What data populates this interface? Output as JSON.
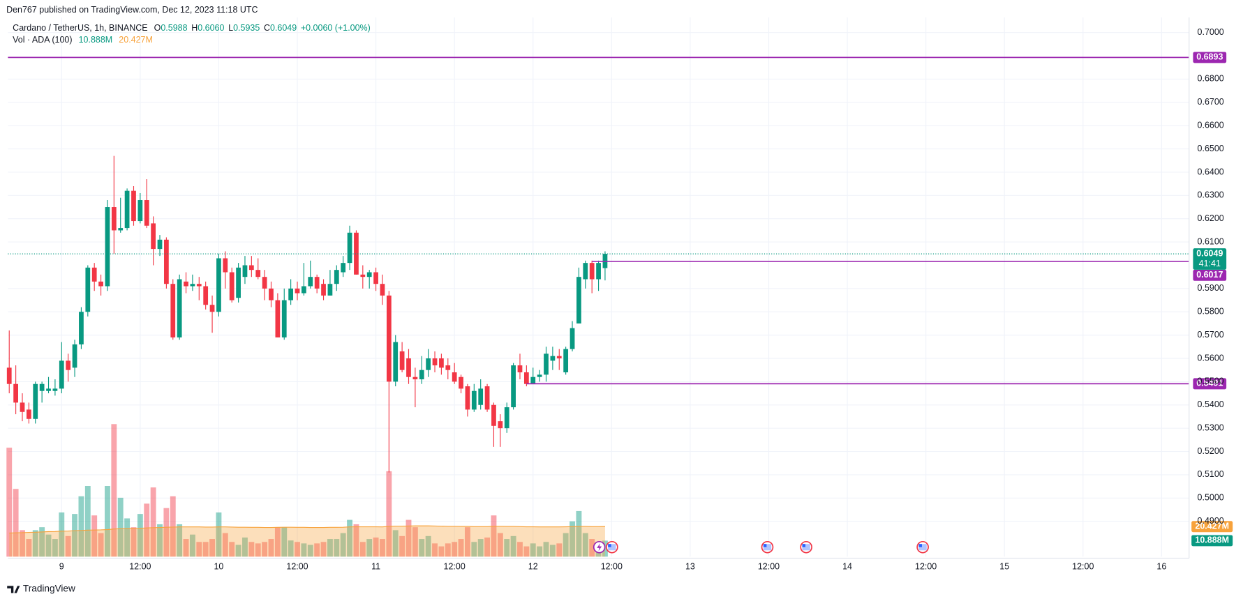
{
  "header": {
    "text": "Den767 published on TradingView.com, Dec 12, 2023 11:18 UTC"
  },
  "footer": {
    "brand": "TradingView"
  },
  "chart_data": {
    "type": "candlestick",
    "symbol": "Cardano / TetherUS, 1h, BINANCE",
    "ohlc_legend": [
      {
        "key": "O",
        "value": "0.5988"
      },
      {
        "key": "H",
        "value": "0.6060"
      },
      {
        "key": "L",
        "value": "0.5935"
      },
      {
        "key": "C",
        "value": "0.6049"
      }
    ],
    "change": "+0.0060 (+1.00%)",
    "volume_legend": {
      "name": "Vol · ADA (100)",
      "values": [
        "10.888M",
        "20.427M"
      ]
    },
    "up_color": "#089981",
    "down_color": "#f23645",
    "volume_ma_color": "#f7a23b",
    "x": [
      -8,
      -7,
      -6,
      -5,
      -4,
      -3,
      -2,
      -1,
      0,
      1,
      2,
      3,
      4,
      5,
      6,
      7,
      8,
      9,
      10,
      11,
      12,
      13,
      14,
      15,
      16,
      17,
      18,
      19,
      20,
      21,
      22,
      23,
      24,
      25,
      26,
      27,
      28,
      29,
      30,
      31,
      32,
      33,
      34,
      35,
      36,
      37,
      38,
      39,
      40,
      41,
      42,
      43,
      44,
      45,
      46,
      47,
      48,
      49,
      50,
      51,
      52,
      53,
      54,
      55,
      56,
      57,
      58,
      59,
      60,
      61,
      62,
      63,
      64,
      65,
      66,
      67,
      68,
      69,
      70,
      71,
      72,
      73,
      74,
      75,
      76,
      77,
      78,
      79,
      80,
      81,
      82,
      83
    ],
    "open": [
      0.556,
      0.549,
      0.541,
      0.538,
      0.534,
      0.546,
      0.546,
      0.546,
      0.547,
      0.559,
      0.556,
      0.566,
      0.58,
      0.599,
      0.593,
      0.591,
      0.625,
      0.615,
      0.616,
      0.632,
      0.619,
      0.628,
      0.618,
      0.607,
      0.611,
      0.592,
      0.569,
      0.593,
      0.591,
      0.592,
      0.591,
      0.583,
      0.58,
      0.603,
      0.597,
      0.586,
      0.595,
      0.6,
      0.598,
      0.595,
      0.59,
      0.585,
      0.569,
      0.585,
      0.59,
      0.588,
      0.591,
      0.595,
      0.592,
      0.587,
      0.592,
      0.597,
      0.601,
      0.614,
      0.596,
      0.595,
      0.597,
      0.592,
      0.587,
      0.55,
      0.563,
      0.56,
      0.552,
      0.551,
      0.555,
      0.56,
      0.56,
      0.557,
      0.554,
      0.552,
      0.548,
      0.538,
      0.54,
      0.548,
      0.54,
      0.533,
      0.53,
      0.539,
      0.557,
      0.554,
      0.549,
      0.552,
      0.553,
      0.559,
      0.561,
      0.554,
      0.564,
      0.575,
      0.594,
      0.601,
      0.594,
      0.5988
    ],
    "high": [
      0.572,
      0.557,
      0.545,
      0.541,
      0.55,
      0.55,
      0.552,
      0.551,
      0.567,
      0.562,
      0.568,
      0.582,
      0.6,
      0.601,
      0.596,
      0.628,
      0.647,
      0.629,
      0.633,
      0.634,
      0.631,
      0.637,
      0.621,
      0.613,
      0.612,
      0.594,
      0.596,
      0.597,
      0.596,
      0.595,
      0.593,
      0.587,
      0.605,
      0.606,
      0.599,
      0.601,
      0.604,
      0.604,
      0.603,
      0.598,
      0.593,
      0.588,
      0.59,
      0.594,
      0.593,
      0.601,
      0.602,
      0.596,
      0.594,
      0.598,
      0.6,
      0.604,
      0.617,
      0.615,
      0.6,
      0.598,
      0.599,
      0.596,
      0.589,
      0.57,
      0.567,
      0.564,
      0.556,
      0.561,
      0.564,
      0.563,
      0.562,
      0.56,
      0.558,
      0.553,
      0.549,
      0.549,
      0.551,
      0.549,
      0.541,
      0.536,
      0.541,
      0.558,
      0.562,
      0.557,
      0.556,
      0.555,
      0.565,
      0.565,
      0.564,
      0.565,
      0.576,
      0.599,
      0.602,
      0.602,
      0.602,
      0.606
    ],
    "low": [
      0.545,
      0.536,
      0.533,
      0.532,
      0.532,
      0.541,
      0.545,
      0.544,
      0.545,
      0.55,
      0.552,
      0.564,
      0.578,
      0.589,
      0.587,
      0.589,
      0.605,
      0.614,
      0.615,
      0.617,
      0.618,
      0.616,
      0.6,
      0.604,
      0.59,
      0.568,
      0.568,
      0.588,
      0.589,
      0.585,
      0.581,
      0.571,
      0.578,
      0.59,
      0.584,
      0.584,
      0.592,
      0.595,
      0.594,
      0.585,
      0.582,
      0.569,
      0.568,
      0.583,
      0.585,
      0.587,
      0.59,
      0.588,
      0.585,
      0.587,
      0.589,
      0.595,
      0.598,
      0.596,
      0.59,
      0.59,
      0.589,
      0.583,
      0.511,
      0.548,
      0.554,
      0.549,
      0.539,
      0.549,
      0.552,
      0.554,
      0.553,
      0.551,
      0.549,
      0.545,
      0.535,
      0.537,
      0.538,
      0.537,
      0.522,
      0.522,
      0.528,
      0.538,
      0.551,
      0.548,
      0.549,
      0.55,
      0.55,
      0.555,
      0.555,
      0.553,
      0.563,
      0.575,
      0.59,
      0.588,
      0.589,
      0.5935
    ],
    "close": [
      0.549,
      0.541,
      0.537,
      0.534,
      0.549,
      0.549,
      0.547,
      0.547,
      0.559,
      0.555,
      0.566,
      0.58,
      0.599,
      0.593,
      0.591,
      0.625,
      0.615,
      0.616,
      0.632,
      0.619,
      0.628,
      0.617,
      0.607,
      0.611,
      0.592,
      0.569,
      0.594,
      0.591,
      0.592,
      0.591,
      0.583,
      0.58,
      0.603,
      0.597,
      0.585,
      0.599,
      0.6,
      0.598,
      0.595,
      0.59,
      0.585,
      0.569,
      0.585,
      0.59,
      0.588,
      0.591,
      0.595,
      0.59,
      0.587,
      0.592,
      0.598,
      0.601,
      0.614,
      0.596,
      0.595,
      0.597,
      0.592,
      0.587,
      0.55,
      0.567,
      0.555,
      0.552,
      0.551,
      0.555,
      0.56,
      0.557,
      0.556,
      0.555,
      0.55,
      0.547,
      0.538,
      0.546,
      0.547,
      0.538,
      0.531,
      0.53,
      0.539,
      0.557,
      0.554,
      0.549,
      0.552,
      0.553,
      0.562,
      0.561,
      0.56,
      0.564,
      0.573,
      0.595,
      0.601,
      0.594,
      0.601,
      0.6049
    ],
    "volume": [
      74,
      46,
      18,
      12,
      18,
      20,
      15,
      12,
      30,
      14,
      29,
      41,
      48,
      28,
      16,
      48,
      90,
      40,
      26,
      20,
      29,
      36,
      47,
      22,
      33,
      41,
      22,
      12,
      15,
      10,
      10,
      12,
      30,
      16,
      10,
      8,
      13,
      10,
      9,
      10,
      12,
      20,
      20,
      11,
      10,
      9,
      8,
      9,
      10,
      12,
      12,
      16,
      25,
      22,
      10,
      12,
      13,
      12,
      58,
      18,
      14,
      25,
      20,
      12,
      14,
      9,
      7,
      9,
      10,
      12,
      20,
      10,
      12,
      13,
      28,
      16,
      12,
      14,
      10,
      7,
      9,
      7,
      10,
      8,
      9,
      16,
      24,
      31,
      16,
      12,
      10,
      10.888
    ],
    "volume_ma": [
      16,
      16.2,
      16.3,
      16.5,
      16.6,
      16.8,
      17,
      17.1,
      17.3,
      17.4,
      17.6,
      17.8,
      18,
      18.1,
      18.2,
      18.4,
      18.8,
      19,
      19.1,
      19.2,
      19.3,
      19.5,
      19.7,
      19.8,
      20,
      20.1,
      20.2,
      20.2,
      20.2,
      20.2,
      20.1,
      20.1,
      20.2,
      20.2,
      20.1,
      20,
      20,
      19.9,
      19.9,
      19.8,
      19.8,
      19.9,
      20,
      20,
      19.9,
      19.9,
      19.8,
      19.8,
      19.8,
      19.9,
      19.9,
      20,
      20.2,
      20.3,
      20.3,
      20.3,
      20.3,
      20.2,
      20.6,
      20.7,
      20.7,
      20.8,
      20.9,
      20.9,
      20.9,
      20.8,
      20.7,
      20.6,
      20.6,
      20.5,
      20.5,
      20.4,
      20.4,
      20.4,
      20.6,
      20.6,
      20.5,
      20.5,
      20.4,
      20.3,
      20.3,
      20.2,
      20.2,
      20.2,
      20.2,
      20.3,
      20.4,
      20.5,
      20.5,
      20.4,
      20.4,
      20.427
    ],
    "volume_labels": [
      {
        "value": 20.427,
        "label": "20.427M",
        "color": "#f7a23b"
      },
      {
        "value": 10.888,
        "label": "10.888M",
        "color": "#089981"
      }
    ],
    "xlim": [
      -8.2,
      172.2
    ],
    "xticks": [
      {
        "value": 0,
        "label": "9"
      },
      {
        "value": 12,
        "label": "12:00"
      },
      {
        "value": 24,
        "label": "10"
      },
      {
        "value": 36,
        "label": "12:00"
      },
      {
        "value": 48,
        "label": "11"
      },
      {
        "value": 60,
        "label": "12:00"
      },
      {
        "value": 72,
        "label": "12"
      },
      {
        "value": 84,
        "label": "12:00"
      },
      {
        "value": 96,
        "label": "13"
      },
      {
        "value": 108,
        "label": "12:00"
      },
      {
        "value": 120,
        "label": "14"
      },
      {
        "value": 132,
        "label": "12:00"
      },
      {
        "value": 144,
        "label": "15"
      },
      {
        "value": 156,
        "label": "12:00"
      },
      {
        "value": 168,
        "label": "16"
      }
    ],
    "ylim": [
      0.4748,
      0.7065
    ],
    "yticks": [
      {
        "value": 0.49,
        "label": "0.4900"
      },
      {
        "value": 0.5,
        "label": "0.5000"
      },
      {
        "value": 0.51,
        "label": "0.5100"
      },
      {
        "value": 0.52,
        "label": "0.5200"
      },
      {
        "value": 0.53,
        "label": "0.5300"
      },
      {
        "value": 0.54,
        "label": "0.5400"
      },
      {
        "value": 0.55,
        "label": "0.5500"
      },
      {
        "value": 0.56,
        "label": "0.5600"
      },
      {
        "value": 0.57,
        "label": "0.5700"
      },
      {
        "value": 0.58,
        "label": "0.5800"
      },
      {
        "value": 0.59,
        "label": "0.5900"
      },
      {
        "value": 0.61,
        "label": "0.6100"
      },
      {
        "value": 0.62,
        "label": "0.6200"
      },
      {
        "value": 0.63,
        "label": "0.6300"
      },
      {
        "value": 0.64,
        "label": "0.6400"
      },
      {
        "value": 0.65,
        "label": "0.6500"
      },
      {
        "value": 0.66,
        "label": "0.6600"
      },
      {
        "value": 0.67,
        "label": "0.6700"
      },
      {
        "value": 0.68,
        "label": "0.6800"
      },
      {
        "value": 0.7,
        "label": "0.7000"
      }
    ],
    "grid": true,
    "levels": [
      {
        "value": 0.6893,
        "color": "#9c27b0"
      },
      {
        "value": 0.6017,
        "color": "#9c27b0",
        "start_x": 81
      },
      {
        "value": 0.5491,
        "color": "#9c27b0",
        "start_x": 71
      }
    ],
    "last_price": {
      "value": 0.6049,
      "countdown": "41:41",
      "color": "#089981"
    }
  }
}
